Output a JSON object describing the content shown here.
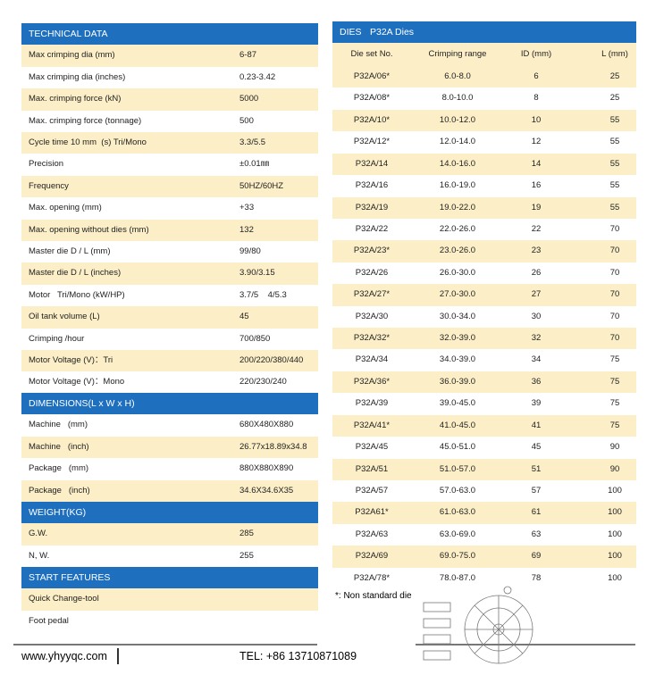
{
  "left": {
    "sections": [
      {
        "title": "TECHNICAL DATA",
        "rows": [
          [
            "Max crimping dia (mm)",
            "6-87"
          ],
          [
            "Max crimping dia (inches)",
            "0.23-3.42"
          ],
          [
            "Max. crimping force (kN)",
            "5000"
          ],
          [
            "Max. crimping force (tonnage)",
            "500"
          ],
          [
            "Cycle time 10 mm  (s) Tri/Mono",
            "3.3/5.5"
          ],
          [
            "Precision",
            "±0.01㎜"
          ],
          [
            "Frequency",
            "50HZ/60HZ"
          ],
          [
            "Max. opening (mm)",
            "+33"
          ],
          [
            "Max. opening without dies (mm)",
            "132"
          ],
          [
            "Master die D / L (mm)",
            "99/80"
          ],
          [
            "Master die D / L (inches)",
            "3.90/3.15"
          ],
          [
            "Motor   Tri/Mono (kW/HP)",
            "3.7/5    4/5.3"
          ],
          [
            "Oil tank volume (L)",
            "45"
          ],
          [
            "Crimping /hour",
            "700/850"
          ],
          [
            "Motor Voltage (V)：Tri",
            "200/220/380/440"
          ],
          [
            "Motor Voltage (V)：Mono",
            "220/230/240"
          ]
        ]
      },
      {
        "title": "DIMENSIONS(L x W x H)",
        "rows": [
          [
            "Machine   (mm)",
            "680X480X880"
          ],
          [
            "Machine   (inch)",
            "26.77x18.89x34.8"
          ],
          [
            "Package   (mm)",
            "880X880X890"
          ],
          [
            "Package   (inch)",
            "34.6X34.6X35"
          ]
        ]
      },
      {
        "title": "WEIGHT(KG)",
        "rows": [
          [
            "G.W.",
            "285"
          ],
          [
            "N, W.",
            "255"
          ]
        ]
      },
      {
        "title": "START FEATURES",
        "rows": [
          [
            "Quick Change-tool"
          ],
          [
            "Foot pedal"
          ]
        ]
      }
    ]
  },
  "dies": {
    "title": "DIES",
    "subtitle": "P32A Dies",
    "columns": [
      "Die set No.",
      "Crimping range",
      "ID (mm)",
      "L (mm)"
    ],
    "rows": [
      [
        "P32A/06*",
        "6.0-8.0",
        "6",
        "25"
      ],
      [
        "P32A/08*",
        "8.0-10.0",
        "8",
        "25"
      ],
      [
        "P32A/10*",
        "10.0-12.0",
        "10",
        "55"
      ],
      [
        "P32A/12*",
        "12.0-14.0",
        "12",
        "55"
      ],
      [
        "P32A/14",
        "14.0-16.0",
        "14",
        "55"
      ],
      [
        "P32A/16",
        "16.0-19.0",
        "16",
        "55"
      ],
      [
        "P32A/19",
        "19.0-22.0",
        "19",
        "55"
      ],
      [
        "P32A/22",
        "22.0-26.0",
        "22",
        "70"
      ],
      [
        "P32A/23*",
        "23.0-26.0",
        "23",
        "70"
      ],
      [
        "P32A/26",
        "26.0-30.0",
        "26",
        "70"
      ],
      [
        "P32A/27*",
        "27.0-30.0",
        "27",
        "70"
      ],
      [
        "P32A/30",
        "30.0-34.0",
        "30",
        "70"
      ],
      [
        "P32A/32*",
        "32.0-39.0",
        "32",
        "70"
      ],
      [
        "P32A/34",
        "34.0-39.0",
        "34",
        "75"
      ],
      [
        "P32A/36*",
        "36.0-39.0",
        "36",
        "75"
      ],
      [
        "P32A/39",
        "39.0-45.0",
        "39",
        "75"
      ],
      [
        "P32A/41*",
        "41.0-45.0",
        "41",
        "75"
      ],
      [
        "P32A/45",
        "45.0-51.0",
        "45",
        "90"
      ],
      [
        "P32A/51",
        "51.0-57.0",
        "51",
        "90"
      ],
      [
        "P32A/57",
        "57.0-63.0",
        "57",
        "100"
      ],
      [
        "P32A61*",
        "61.0-63.0",
        "61",
        "100"
      ],
      [
        "P32A/63",
        "63.0-69.0",
        "63",
        "100"
      ],
      [
        "P32A/69",
        "69.0-75.0",
        "69",
        "100"
      ],
      [
        "P32A/78*",
        "78.0-87.0",
        "78",
        "100"
      ]
    ]
  },
  "note": "*: Non standard die",
  "footer": {
    "website": "www.yhyyqc.com",
    "tel": "TEL: +86 13710871089"
  }
}
